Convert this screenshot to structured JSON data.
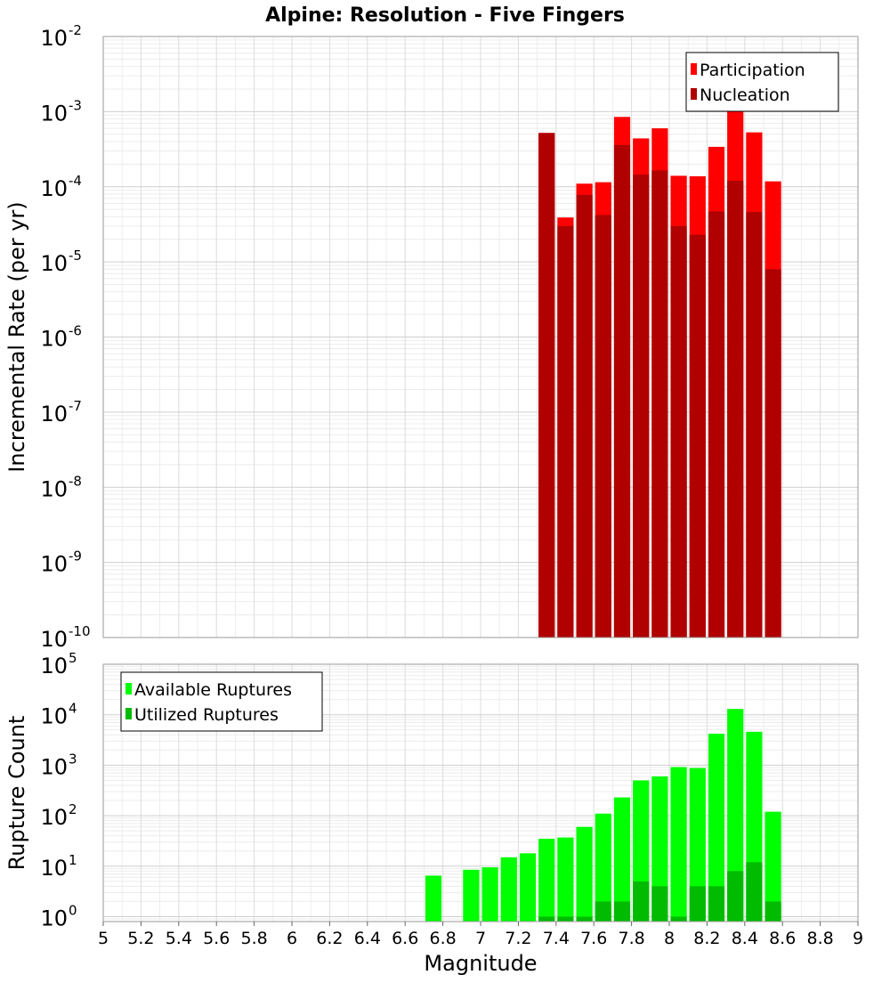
{
  "chart_data": [
    {
      "type": "bar",
      "title": "Alpine: Resolution - Five Fingers",
      "xlabel": "",
      "ylabel": "Incremental Rate (per yr)",
      "yscale": "log",
      "xlim": [
        5,
        9
      ],
      "ylim": [
        1e-10,
        0.01
      ],
      "y_tick_exponents": [
        -10,
        -9,
        -8,
        -7,
        -6,
        -5,
        -4,
        -3,
        -2
      ],
      "legend_position": "top-right",
      "grid": true,
      "bin_width": 0.1,
      "x": [
        7.35,
        7.45,
        7.55,
        7.65,
        7.75,
        7.85,
        7.95,
        8.05,
        8.15,
        8.25,
        8.35,
        8.45,
        8.55
      ],
      "series": [
        {
          "name": "Participation",
          "color": "#ff0000",
          "values": [
            0.00052,
            3.9e-05,
            0.00011,
            0.000115,
            0.00085,
            0.00044,
            0.0006,
            0.00014,
            0.000138,
            0.00034,
            0.00105,
            0.00053,
            0.000118
          ]
        },
        {
          "name": "Nucleation",
          "color": "#b00000",
          "values": [
            0.00052,
            3e-05,
            7.8e-05,
            4.2e-05,
            0.00036,
            0.000145,
            0.000165,
            3e-05,
            2.3e-05,
            4.7e-05,
            0.00012,
            4.6e-05,
            8e-06
          ]
        }
      ]
    },
    {
      "type": "bar",
      "title": "",
      "xlabel": "Magnitude",
      "ylabel": "Rupture Count",
      "yscale": "log",
      "xlim": [
        5,
        9
      ],
      "ylim": [
        0.8,
        100000
      ],
      "y_tick_exponents": [
        0,
        1,
        2,
        3,
        4,
        5
      ],
      "x_ticks": [
        "5",
        "5.2",
        "5.4",
        "5.6",
        "5.8",
        "6",
        "6.2",
        "6.4",
        "6.6",
        "6.8",
        "7",
        "7.2",
        "7.4",
        "7.6",
        "7.8",
        "8",
        "8.2",
        "8.4",
        "8.6",
        "8.8",
        "9"
      ],
      "legend_position": "top-left",
      "grid": true,
      "bin_width": 0.1,
      "x": [
        6.75,
        6.95,
        7.05,
        7.15,
        7.25,
        7.35,
        7.45,
        7.55,
        7.65,
        7.75,
        7.85,
        7.95,
        8.05,
        8.15,
        8.25,
        8.35,
        8.45,
        8.55
      ],
      "series": [
        {
          "name": "Available Ruptures",
          "color": "#00ff00",
          "values": [
            6.5,
            8.5,
            9.5,
            15,
            18,
            35,
            37,
            60,
            110,
            230,
            500,
            600,
            920,
            880,
            4200,
            13000,
            4600,
            120
          ]
        },
        {
          "name": "Utilized Ruptures",
          "color": "#00bb00",
          "values": [
            0,
            0,
            0,
            0,
            0,
            1,
            1,
            1,
            2,
            2,
            5,
            4,
            1,
            4,
            4,
            8,
            12,
            2
          ]
        }
      ]
    }
  ]
}
